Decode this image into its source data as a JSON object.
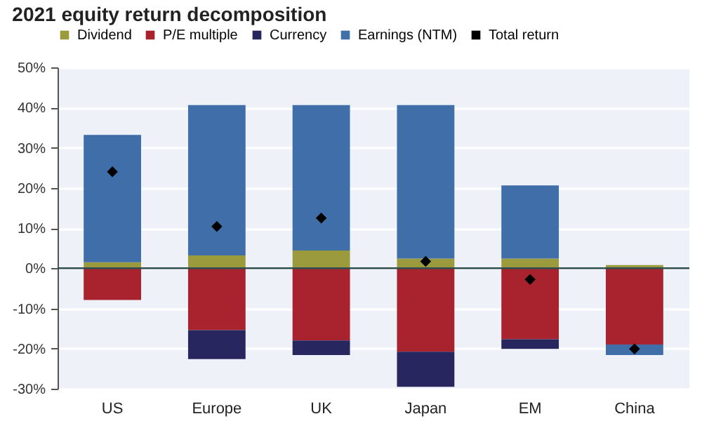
{
  "chart_data": {
    "type": "bar",
    "title": "2021 equity return decomposition",
    "categories": [
      "US",
      "Europe",
      "UK",
      "Japan",
      "EM",
      "China"
    ],
    "stacked": true,
    "series": [
      {
        "name": "Dividend",
        "color": "#9b9a3c",
        "values": [
          1.5,
          3.2,
          4.4,
          2.4,
          2.4,
          0.8
        ]
      },
      {
        "name": "P/E multiple",
        "color": "#a8232e",
        "values": [
          -7.9,
          -15.4,
          -18,
          -20.8,
          -17.7,
          -19
        ]
      },
      {
        "name": "Currency",
        "color": "#27265e",
        "values": [
          null,
          -7.2,
          -3.6,
          -8.7,
          -2.4,
          null
        ]
      },
      {
        "name": "Earnings (NTM)",
        "color": "#3f6ea8",
        "values": [
          31.7,
          37.4,
          36.2,
          38.2,
          18.2,
          -2.6
        ]
      },
      {
        "name": "Total return",
        "type": "scatter",
        "color": "#000000",
        "values": [
          24,
          10.4,
          12.5,
          1.7,
          -2.8,
          -20.1
        ]
      }
    ],
    "marker": "diamond",
    "ylim": [
      -30,
      50
    ],
    "yticks": [
      {
        "value": -30,
        "label": "-30%"
      },
      {
        "value": -20,
        "label": "-20%"
      },
      {
        "value": -10,
        "label": "-10%"
      },
      {
        "value": 0,
        "label": "0%"
      },
      {
        "value": 10,
        "label": "10%"
      },
      {
        "value": 20,
        "label": "20%"
      },
      {
        "value": 30,
        "label": "30%"
      },
      {
        "value": 40,
        "label": "40%"
      },
      {
        "value": 50,
        "label": "50%"
      }
    ],
    "ref_lines": [
      {
        "axis": "y",
        "value": 0,
        "color": "#2f4f4f"
      }
    ],
    "grid": "y",
    "legend": "top"
  }
}
